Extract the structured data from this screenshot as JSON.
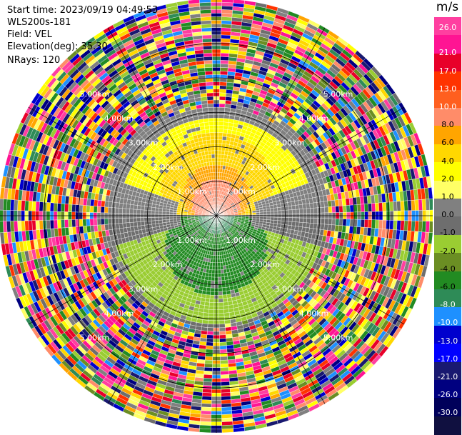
{
  "info": {
    "start_time": "Start time: 2023/09/19 04:49:53",
    "instrument": "WLS200s-181",
    "field": "Field: VEL",
    "elevation": "Elevation(deg): 35.30",
    "nrays": "NRays: 120"
  },
  "chart_data": {
    "type": "heatmap",
    "title": "",
    "projection": "polar PPI",
    "field": "VEL",
    "nrays": 120,
    "range_rings_km": [
      1.0,
      2.0,
      3.0,
      4.0,
      5.0
    ],
    "range_ring_labels": [
      "1.00km",
      "2.00km",
      "3.00km",
      "4.00km",
      "5.00km"
    ],
    "max_range_km": 6.3,
    "colorbar": {
      "unit": "m/s",
      "ticks": [
        "26.0",
        "21.0",
        "17.0",
        "13.0",
        "10.0",
        "8.0",
        "6.0",
        "4.0",
        "2.0",
        "1.0",
        "0.0",
        "-1.0",
        "-2.0",
        "-4.0",
        "-6.0",
        "-8.0",
        "-10.0",
        "-13.0",
        "-17.0",
        "-21.0",
        "-26.0",
        "-30.0"
      ],
      "colors": [
        "#ff3fa0",
        "#ff1493",
        "#e8002a",
        "#ff3300",
        "#ff5f1f",
        "#ff8c69",
        "#ffa500",
        "#ffd700",
        "#ffff00",
        "#ffff66",
        "#808080",
        "#6e6e6e",
        "#9acd32",
        "#6b8e23",
        "#228b22",
        "#2e8b57",
        "#1e90ff",
        "#0000cd",
        "#0000ff",
        "#191970",
        "#000080",
        "#00005a",
        "#101040"
      ]
    },
    "regions": [
      {
        "description": "toward top (positive)",
        "range_km": [
          0,
          1.0
        ],
        "value": 8.0
      },
      {
        "description": "toward top (positive)",
        "range_km": [
          1.0,
          2.2
        ],
        "value": 4.0
      },
      {
        "description": "toward top (positive)",
        "range_km": [
          2.2,
          2.8
        ],
        "value": 2.0
      },
      {
        "description": "toward bottom (negative)",
        "range_km": [
          0,
          1.1
        ],
        "value": -4.0
      },
      {
        "description": "toward bottom (negative)",
        "range_km": [
          1.1,
          2.2
        ],
        "value": -6.0
      },
      {
        "description": "toward bottom (negative)",
        "range_km": [
          2.2,
          3.3
        ],
        "value": -2.0
      },
      {
        "description": "noise",
        "range_km": [
          3.3,
          6.3
        ],
        "value": null
      }
    ]
  }
}
